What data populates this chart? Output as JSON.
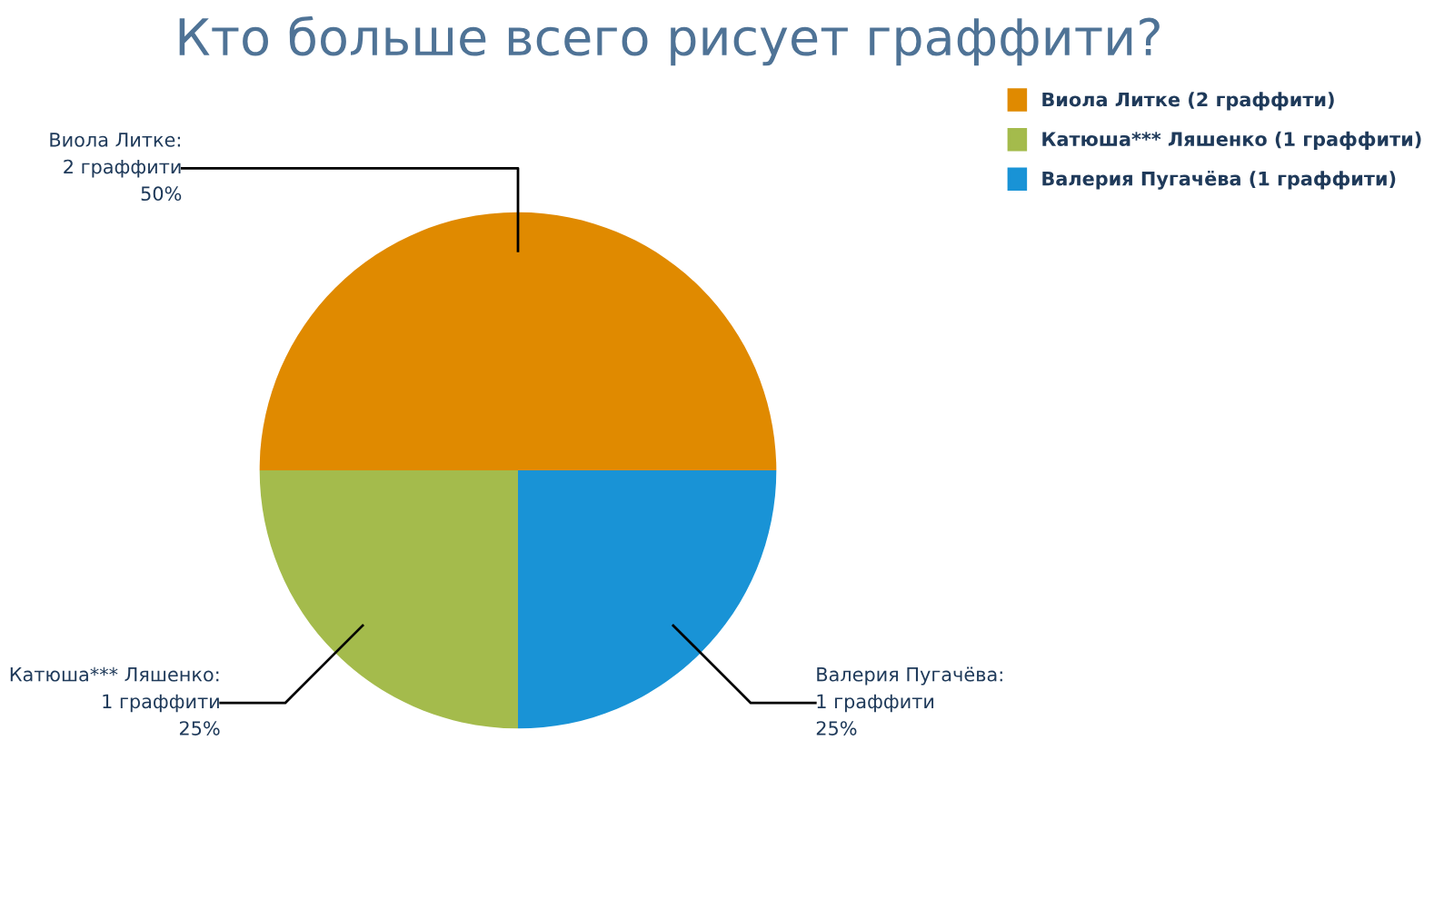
{
  "chart_data": {
    "type": "pie",
    "title": "Кто больше всего рисует граффити?",
    "categories": [
      "Виола Литке (2 граффити)",
      "Катюша*** Ляшенко (1 граффити)",
      "Валерия Пугачёва (1 граффити)"
    ],
    "values": [
      2,
      1,
      1
    ],
    "value_labels": [
      "Виола Литке:\n2 граффити\n50%",
      "Катюша*** Ляшенко:\n1 граффити\n25%",
      "Валерия Пугачёва:\n1 граффити\n25%"
    ],
    "colors": [
      "#e08a00",
      "#a4bb4c",
      "#1993d6"
    ],
    "legend": "top right"
  }
}
